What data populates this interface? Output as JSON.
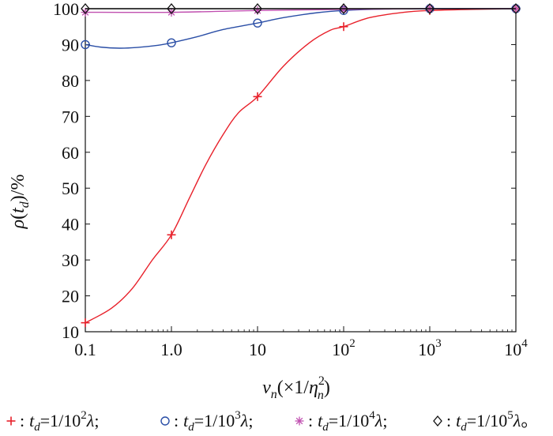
{
  "chart_data": {
    "type": "line",
    "x_scale": "log",
    "xlim": [
      0.1,
      10000
    ],
    "ylim": [
      10,
      100
    ],
    "grid": false,
    "legend_position": "bottom",
    "x_tick_values": [
      0.1,
      1,
      10,
      100,
      1000,
      10000
    ],
    "x_tick_labels": [
      {
        "base": "0.1",
        "exp": ""
      },
      {
        "base": "1.0",
        "exp": ""
      },
      {
        "base": "10",
        "exp": ""
      },
      {
        "base": "10",
        "exp": "2"
      },
      {
        "base": "10",
        "exp": "3"
      },
      {
        "base": "10",
        "exp": "4"
      }
    ],
    "y_ticks": [
      10,
      20,
      30,
      40,
      50,
      60,
      70,
      80,
      90,
      100
    ],
    "xlabel": {
      "main": "v",
      "sub": "n",
      "paren": "(×1/",
      "eta": "η",
      "eta_sup": "2",
      "eta_sub": "n",
      "close": ")"
    },
    "ylabel": {
      "rho": "ρ",
      "paren_open": "(",
      "t": "t",
      "t_sub": "d",
      "rest": ")/%"
    },
    "x": [
      0.1,
      1,
      10,
      100,
      1000,
      10000
    ],
    "series": [
      {
        "marker": "plus",
        "color": "#e8202a",
        "values": [
          12.5,
          37,
          75.5,
          95,
          99.5,
          100
        ],
        "curve": [
          [
            0.1,
            12.5
          ],
          [
            0.2,
            16.5
          ],
          [
            0.35,
            22
          ],
          [
            0.6,
            30
          ],
          [
            1,
            37
          ],
          [
            1.6,
            47
          ],
          [
            2.5,
            56.5
          ],
          [
            4,
            65
          ],
          [
            6,
            71
          ],
          [
            10,
            75.5
          ],
          [
            20,
            84
          ],
          [
            40,
            90.5
          ],
          [
            70,
            94
          ],
          [
            100,
            95
          ],
          [
            200,
            97.5
          ],
          [
            500,
            99
          ],
          [
            1000,
            99.5
          ],
          [
            3000,
            99.8
          ],
          [
            10000,
            100
          ]
        ]
      },
      {
        "marker": "circle",
        "color": "#2a4ea6",
        "values": [
          90,
          90.5,
          96,
          99.5,
          100,
          100
        ],
        "curve": [
          [
            0.1,
            90
          ],
          [
            0.15,
            89.3
          ],
          [
            0.25,
            89
          ],
          [
            0.4,
            89.2
          ],
          [
            0.7,
            89.8
          ],
          [
            1,
            90.5
          ],
          [
            2,
            92.2
          ],
          [
            4,
            94.2
          ],
          [
            10,
            96
          ],
          [
            20,
            97.5
          ],
          [
            50,
            98.9
          ],
          [
            100,
            99.5
          ],
          [
            300,
            99.9
          ],
          [
            1000,
            100
          ],
          [
            10000,
            100
          ]
        ]
      },
      {
        "marker": "asterisk",
        "color": "#c050b0",
        "values": [
          99,
          99,
          99.5,
          99.8,
          100,
          100
        ],
        "curve": [
          [
            0.1,
            99
          ],
          [
            1,
            99
          ],
          [
            10,
            99.5
          ],
          [
            100,
            99.8
          ],
          [
            1000,
            100
          ],
          [
            10000,
            100
          ]
        ]
      },
      {
        "marker": "diamond",
        "color": "#111111",
        "values": [
          100,
          100,
          100,
          100,
          100,
          100
        ],
        "curve": [
          [
            0.1,
            100
          ],
          [
            10000,
            100
          ]
        ]
      }
    ],
    "legend": [
      {
        "marker": "plus",
        "color": "#e8202a",
        "sym": "+",
        "td": "t",
        "td_sub": "d",
        "eq": "=1/10",
        "exp": "2",
        "lam": "λ",
        "end": ";"
      },
      {
        "marker": "circle",
        "color": "#2a4ea6",
        "sym": "○",
        "td": "t",
        "td_sub": "d",
        "eq": "=1/10",
        "exp": "3",
        "lam": "λ",
        "end": ";"
      },
      {
        "marker": "asterisk",
        "color": "#c050b0",
        "sym": "*",
        "td": "t",
        "td_sub": "d",
        "eq": "=1/10",
        "exp": "4",
        "lam": "λ",
        "end": ";"
      },
      {
        "marker": "diamond",
        "color": "#111111",
        "sym": "◇",
        "td": "t",
        "td_sub": "d",
        "eq": "=1/10",
        "exp": "5",
        "lam": "λ",
        "end": "。"
      }
    ]
  }
}
